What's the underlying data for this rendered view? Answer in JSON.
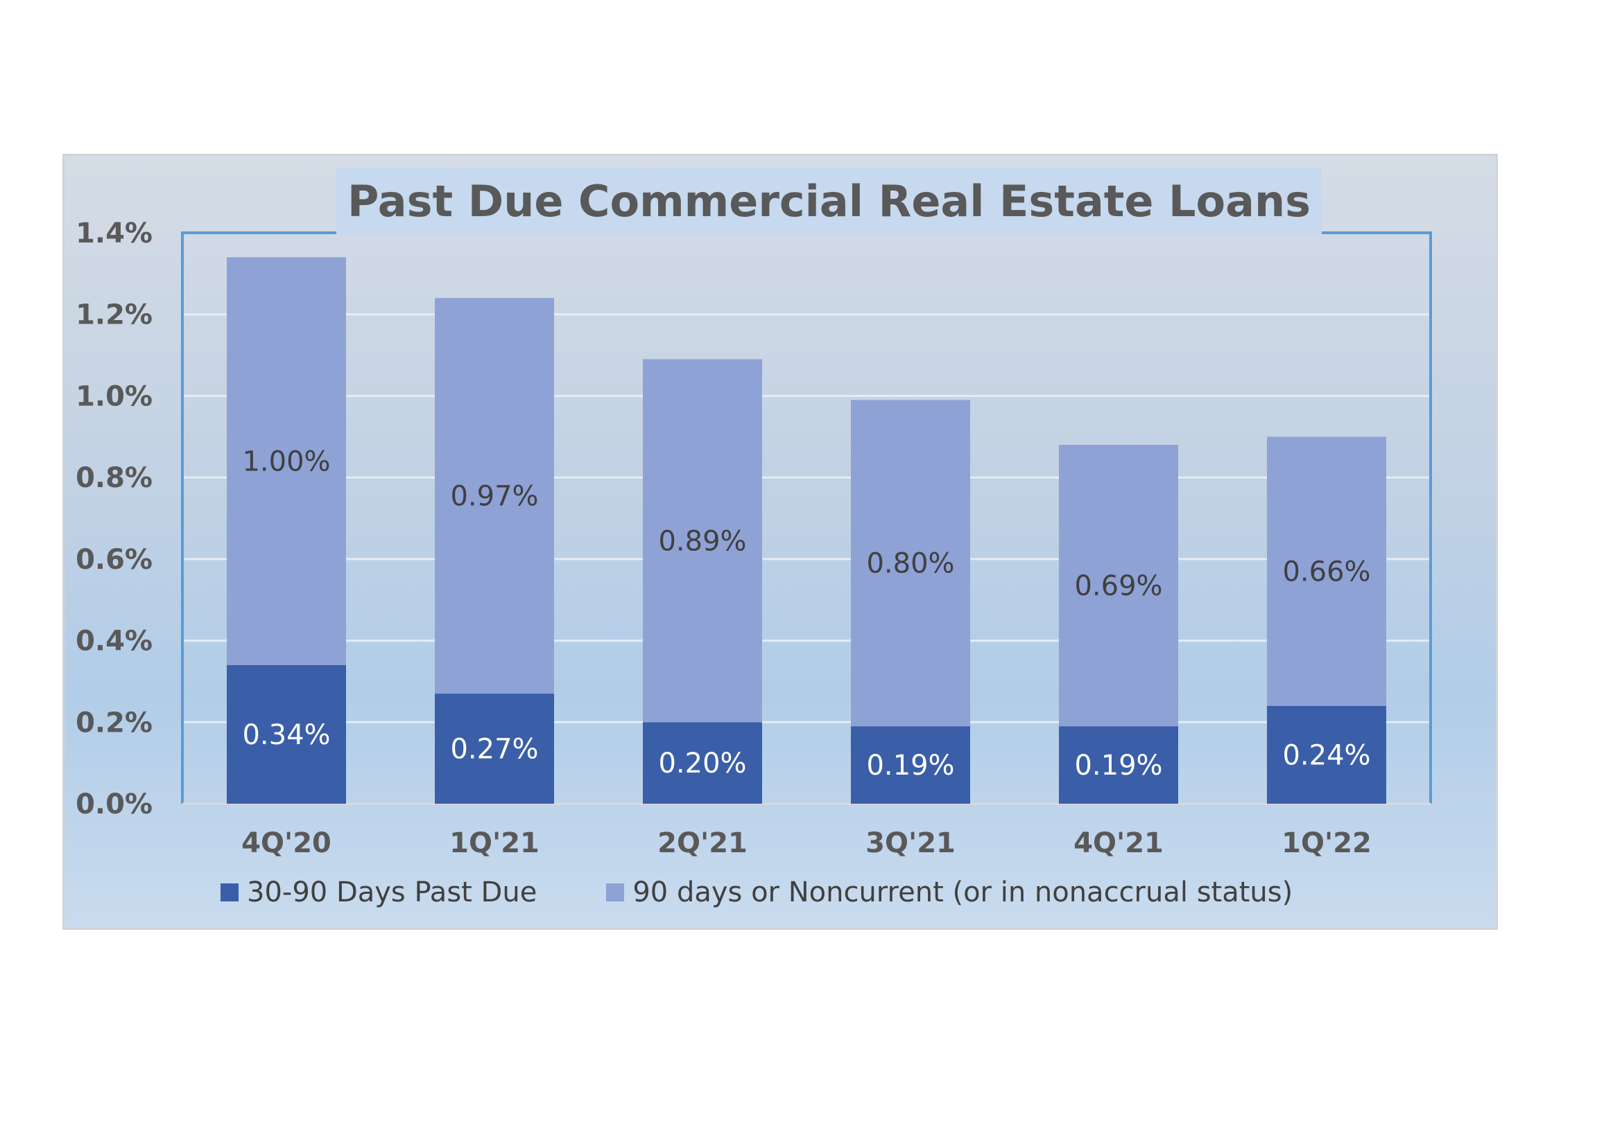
{
  "chart_data": {
    "type": "bar",
    "stacked": true,
    "title": "Past Due Commercial Real Estate Loans",
    "categories": [
      "4Q'20",
      "1Q'21",
      "2Q'21",
      "3Q'21",
      "4Q'21",
      "1Q'22"
    ],
    "series": [
      {
        "name": "30-90 Days Past Due",
        "values": [
          0.34,
          0.27,
          0.2,
          0.19,
          0.19,
          0.24
        ],
        "labels": [
          "0.34%",
          "0.27%",
          "0.20%",
          "0.19%",
          "0.19%",
          "0.24%"
        ],
        "color": "#3a5ea8"
      },
      {
        "name": "90 days or Noncurrent (or in nonaccrual status)",
        "values": [
          1.0,
          0.97,
          0.89,
          0.8,
          0.69,
          0.66
        ],
        "labels": [
          "1.00%",
          "0.97%",
          "0.89%",
          "0.80%",
          "0.69%",
          "0.66%"
        ],
        "color": "#8fa2d6"
      }
    ],
    "ylim": [
      0,
      1.4
    ],
    "yticks": [
      0,
      0.2,
      0.4,
      0.6,
      0.8,
      1.0,
      1.2,
      1.4
    ],
    "ytick_labels": [
      "0.0%",
      "0.2%",
      "0.4%",
      "0.6%",
      "0.8%",
      "1.0%",
      "1.2%",
      "1.4%"
    ],
    "xlabel": "",
    "ylabel": "",
    "grid": true,
    "legend_position": "bottom"
  }
}
